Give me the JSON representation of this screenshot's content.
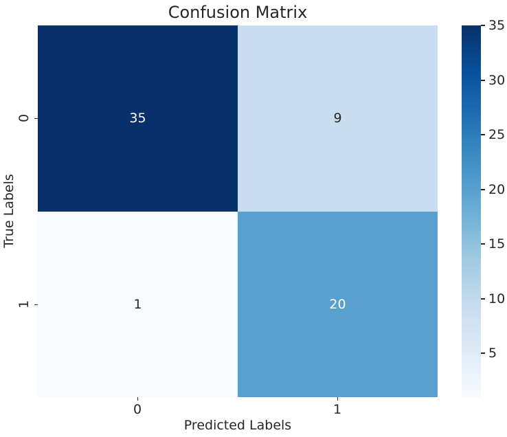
{
  "chart_data": {
    "type": "heatmap",
    "title": "Confusion Matrix",
    "xlabel": "Predicted Labels",
    "ylabel": "True Labels",
    "x_tick_labels": [
      "0",
      "1"
    ],
    "y_tick_labels": [
      "0",
      "1"
    ],
    "matrix": [
      [
        35,
        9
      ],
      [
        1,
        20
      ]
    ],
    "cell_colors": [
      [
        "#08306b",
        "#c9ddf0"
      ],
      [
        "#f7fbff",
        "#58a1ce"
      ]
    ],
    "cell_text_colors": [
      [
        "#ffffff",
        "#262626"
      ],
      [
        "#262626",
        "#ffffff"
      ]
    ],
    "colormap": "Blues",
    "grid": false,
    "legend_position": "right-colorbar",
    "colorbar": {
      "vmin": 1,
      "vmax": 35,
      "ticks": [
        5,
        10,
        15,
        20,
        25,
        30,
        35
      ],
      "gradient_stops_bottom_to_top": [
        "#f7fbff",
        "#deebf7",
        "#c6dbef",
        "#9ecae1",
        "#6baed6",
        "#4292c6",
        "#2171b5",
        "#08519c",
        "#08306b"
      ]
    }
  },
  "colors": {
    "text": "#262626",
    "background": "#ffffff"
  }
}
